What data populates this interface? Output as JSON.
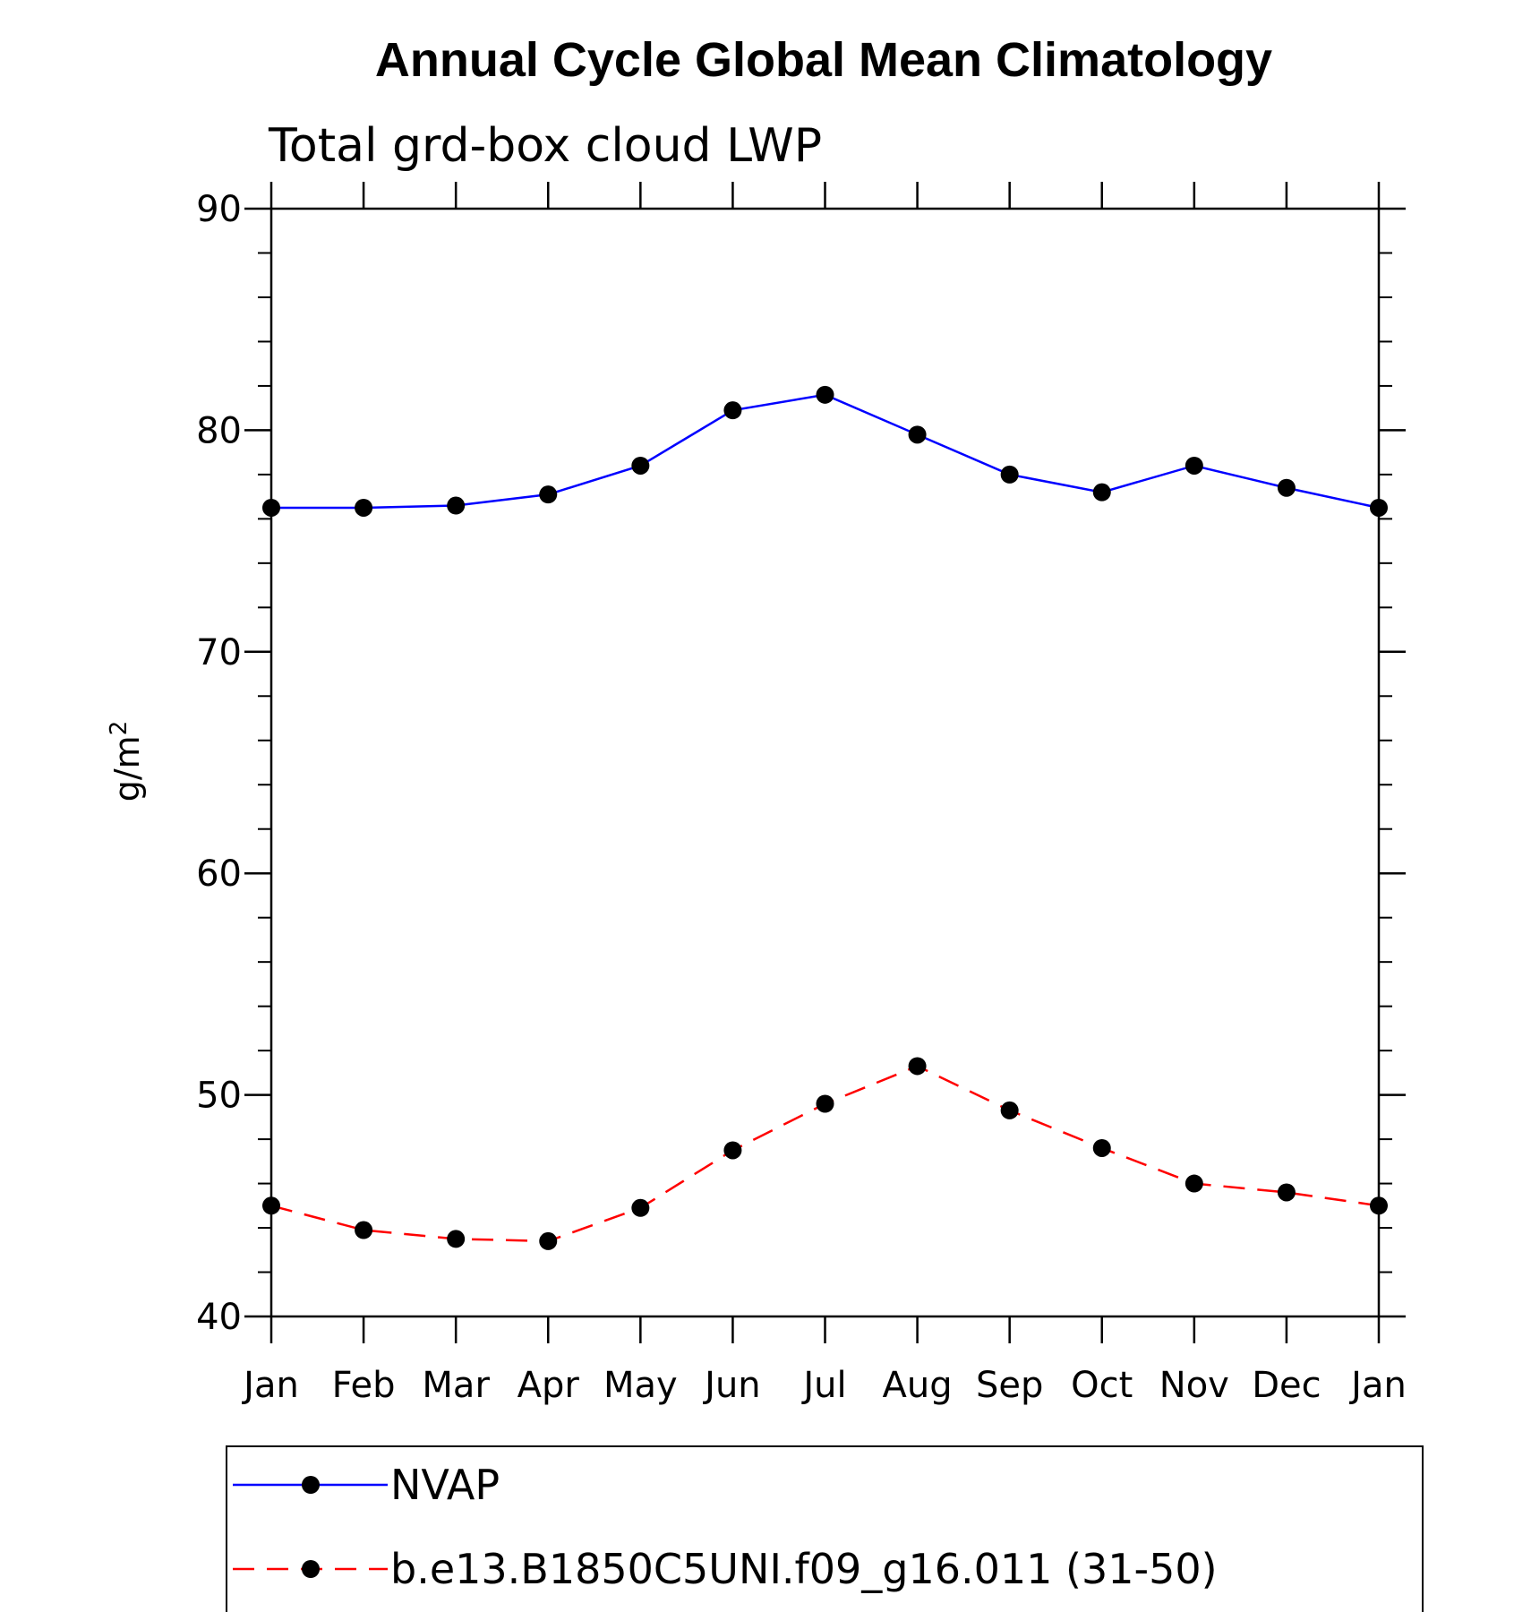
{
  "chart_data": {
    "type": "line",
    "title": "Annual Cycle Global Mean Climatology",
    "subtitle": "Total grd-box cloud LWP",
    "ylabel": "g/m",
    "ylabel_superscript": "2",
    "xlabel": "",
    "categories": [
      "Jan",
      "Feb",
      "Mar",
      "Apr",
      "May",
      "Jun",
      "Jul",
      "Aug",
      "Sep",
      "Oct",
      "Nov",
      "Dec",
      "Jan"
    ],
    "ylim": [
      40,
      90
    ],
    "yticks": [
      40,
      50,
      60,
      70,
      80,
      90
    ],
    "grid": false,
    "legend_position": "bottom",
    "series": [
      {
        "name": "NVAP",
        "color": "#0000ff",
        "line_style": "solid",
        "marker": "filled-circle",
        "values": [
          76.5,
          76.5,
          76.6,
          77.1,
          78.4,
          80.9,
          81.6,
          79.8,
          78.0,
          77.2,
          78.4,
          77.4,
          76.5
        ]
      },
      {
        "name": "b.e13.B1850C5UNI.f09_g16.011 (31-50)",
        "color": "#ff0000",
        "line_style": "dashed",
        "marker": "filled-circle",
        "values": [
          45.0,
          43.9,
          43.5,
          43.4,
          44.9,
          47.5,
          49.6,
          51.3,
          49.3,
          47.6,
          46.0,
          45.6,
          45.0
        ]
      }
    ]
  }
}
